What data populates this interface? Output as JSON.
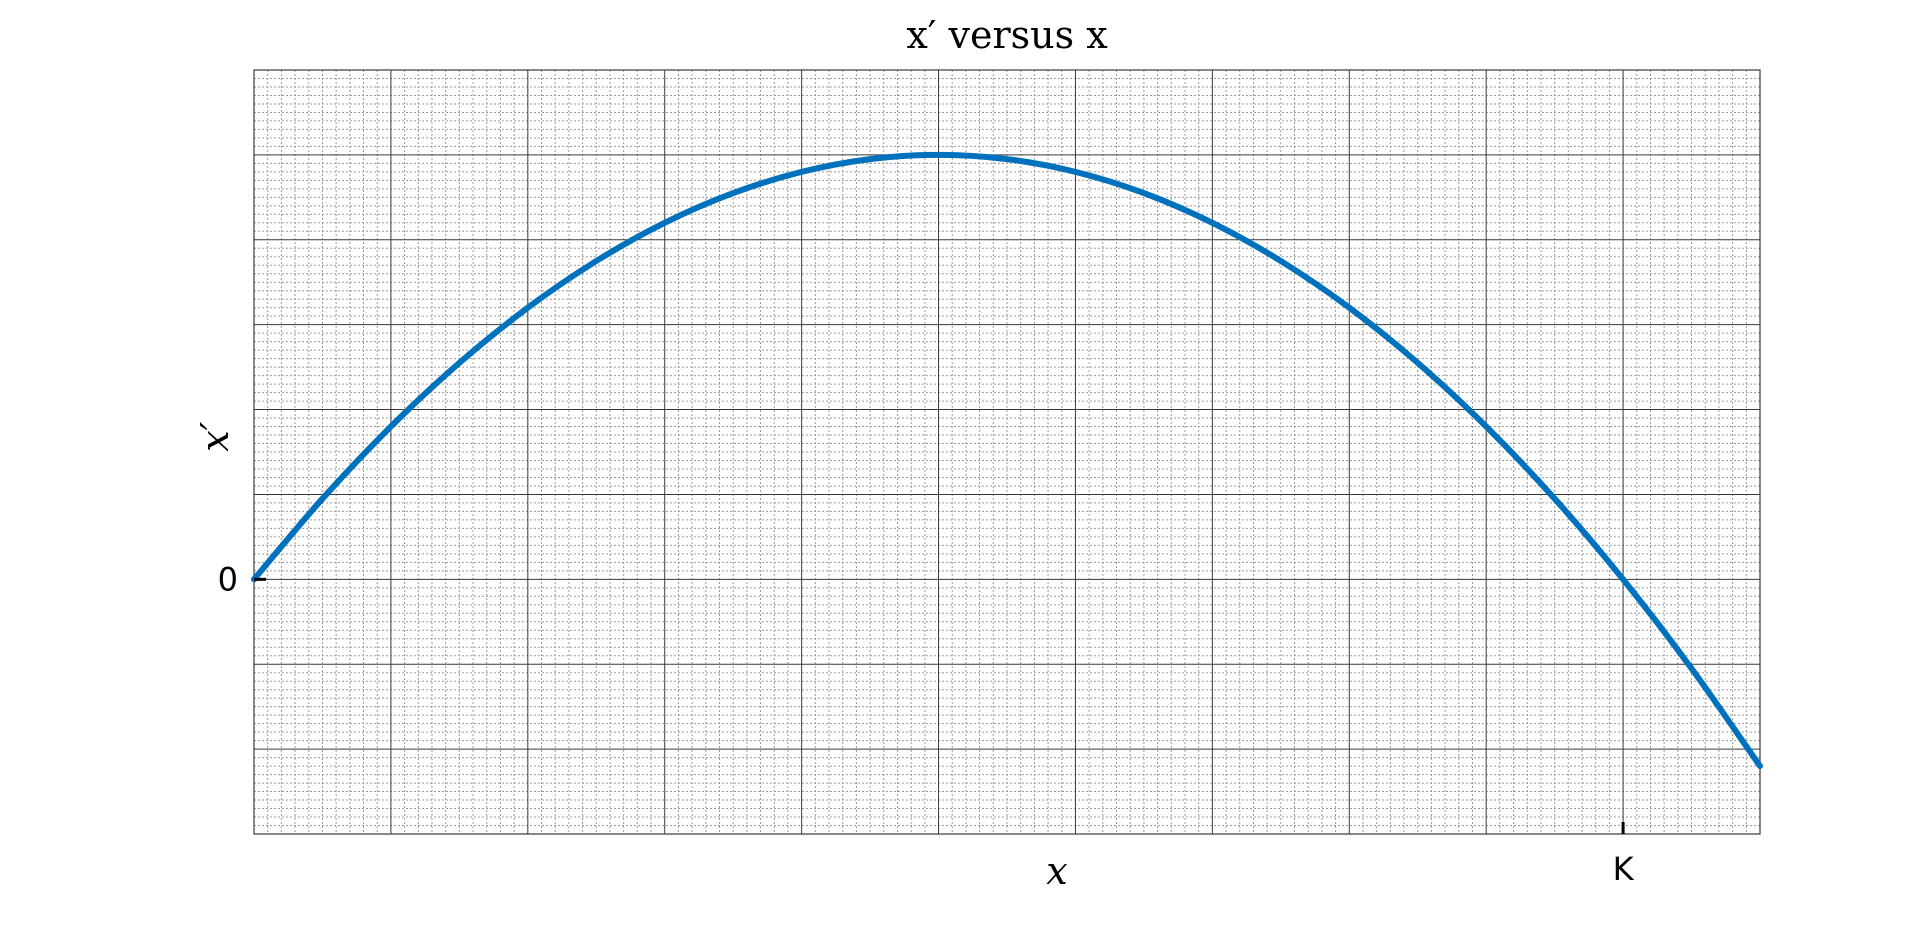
{
  "chart_data": {
    "type": "line",
    "title": "x′ versus x",
    "xlabel": "x",
    "ylabel": "x′",
    "x_ticks": [
      {
        "value": 10,
        "label": "K"
      }
    ],
    "y_ticks": [
      {
        "value": 0,
        "label": "0"
      }
    ],
    "xlim": [
      0,
      11
    ],
    "ylim": [
      -3,
      6
    ],
    "grid": true,
    "legend": "none",
    "series": [
      {
        "color": "#0072bd",
        "x": [
          0,
          0.5,
          1,
          1.5,
          2,
          2.5,
          3,
          3.5,
          4,
          4.5,
          5,
          5.5,
          6,
          6.5,
          7,
          7.5,
          8,
          8.5,
          9,
          9.5,
          10,
          10.5,
          11
        ],
        "y": [
          0,
          0.95,
          1.8,
          2.55,
          3.2,
          3.75,
          4.2,
          4.55,
          4.8,
          4.95,
          5.0,
          4.95,
          4.8,
          4.55,
          4.2,
          3.75,
          3.2,
          2.55,
          1.8,
          0.95,
          0,
          -1.05,
          -2.2
        ]
      }
    ]
  }
}
